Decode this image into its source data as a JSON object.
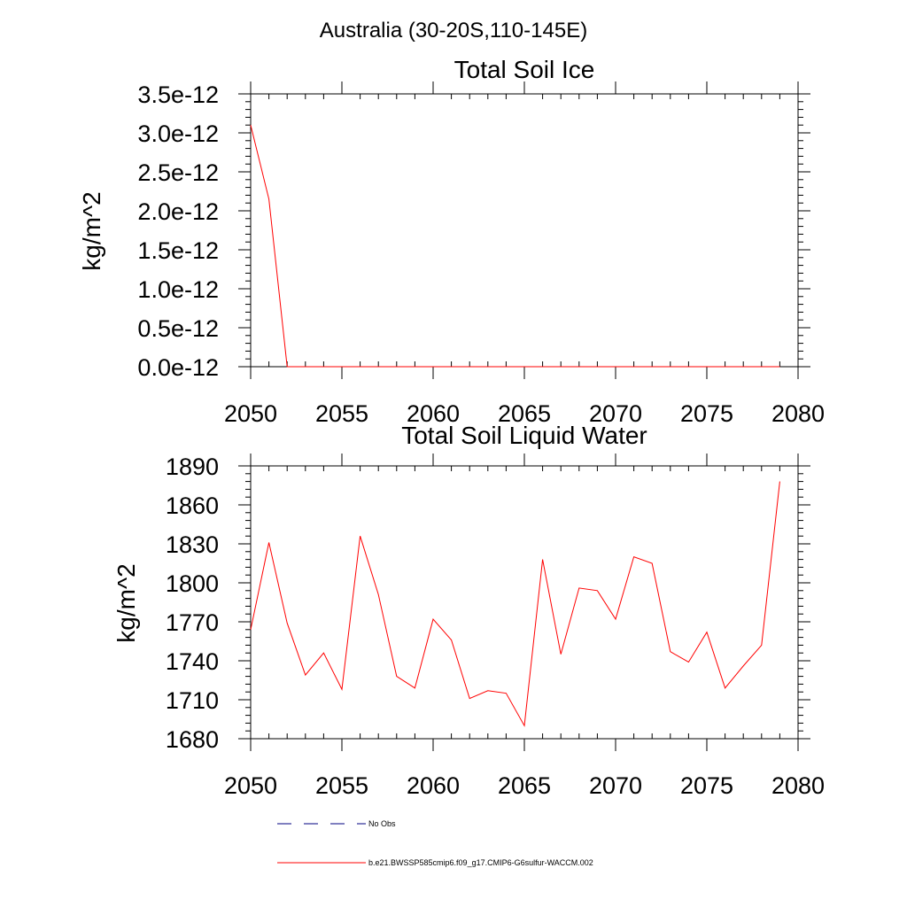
{
  "suptitle": "Australia (30-20S,110-145E)",
  "chart_data": [
    {
      "type": "line",
      "title": "Total Soil Ice",
      "ylabel": "kg/m^2",
      "xlabel": "",
      "xlim": [
        2050,
        2080
      ],
      "ylim": [
        0,
        3.5e-12
      ],
      "xticks": [
        2050,
        2055,
        2060,
        2065,
        2070,
        2075,
        2080
      ],
      "xtick_labels": [
        "2050",
        "2055",
        "2060",
        "2065",
        "2070",
        "2075",
        "2080"
      ],
      "yticks": [
        0,
        5e-13,
        1e-12,
        1.5e-12,
        2e-12,
        2.5e-12,
        3e-12,
        3.5e-12
      ],
      "ytick_labels": [
        "0.0e-12",
        "0.5e-12",
        "1.0e-12",
        "1.5e-12",
        "2.0e-12",
        "2.5e-12",
        "3.0e-12",
        "3.5e-12"
      ],
      "series": [
        {
          "name": "b.e21.BWSSP585cmip6.f09_g17.CMIP6-G6sulfur-WACCM.002",
          "color": "#ff0000",
          "x": [
            2050,
            2051,
            2052,
            2053,
            2054,
            2055,
            2056,
            2057,
            2058,
            2059,
            2060,
            2061,
            2062,
            2063,
            2064,
            2065,
            2066,
            2067,
            2068,
            2069,
            2070,
            2071,
            2072,
            2073,
            2074,
            2075,
            2076,
            2077,
            2078,
            2079
          ],
          "y": [
            3.1e-12,
            2.15e-12,
            0,
            0,
            0,
            0,
            0,
            0,
            0,
            0,
            0,
            0,
            0,
            0,
            0,
            0,
            0,
            0,
            0,
            0,
            0,
            0,
            0,
            0,
            0,
            0,
            0,
            0,
            0,
            0
          ]
        }
      ]
    },
    {
      "type": "line",
      "title": "Total Soil Liquid Water",
      "ylabel": "kg/m^2",
      "xlabel": "",
      "xlim": [
        2050,
        2080
      ],
      "ylim": [
        1680,
        1890
      ],
      "xticks": [
        2050,
        2055,
        2060,
        2065,
        2070,
        2075,
        2080
      ],
      "xtick_labels": [
        "2050",
        "2055",
        "2060",
        "2065",
        "2070",
        "2075",
        "2080"
      ],
      "yticks": [
        1680,
        1710,
        1740,
        1770,
        1800,
        1830,
        1860,
        1890
      ],
      "ytick_labels": [
        "1680",
        "1710",
        "1740",
        "1770",
        "1800",
        "1830",
        "1860",
        "1890"
      ],
      "series": [
        {
          "name": "b.e21.BWSSP585cmip6.f09_g17.CMIP6-G6sulfur-WACCM.002",
          "color": "#ff0000",
          "x": [
            2050,
            2051,
            2052,
            2053,
            2054,
            2055,
            2056,
            2057,
            2058,
            2059,
            2060,
            2061,
            2062,
            2063,
            2064,
            2065,
            2066,
            2067,
            2068,
            2069,
            2070,
            2071,
            2072,
            2073,
            2074,
            2075,
            2076,
            2077,
            2078,
            2079
          ],
          "y": [
            1764,
            1831,
            1769,
            1729,
            1746,
            1718,
            1836,
            1791,
            1728,
            1719,
            1772,
            1756,
            1711,
            1717,
            1715,
            1690,
            1818,
            1745,
            1796,
            1794,
            1772,
            1820,
            1815,
            1747,
            1739,
            1762,
            1719,
            1736,
            1752,
            1878
          ]
        }
      ]
    }
  ],
  "legend": {
    "items": [
      {
        "label": "No Obs",
        "color": "#000080",
        "style": "dashed"
      },
      {
        "label": "b.e21.BWSSP585cmip6.f09_g17.CMIP6-G6sulfur-WACCM.002",
        "color": "#ff0000",
        "style": "solid"
      }
    ]
  }
}
